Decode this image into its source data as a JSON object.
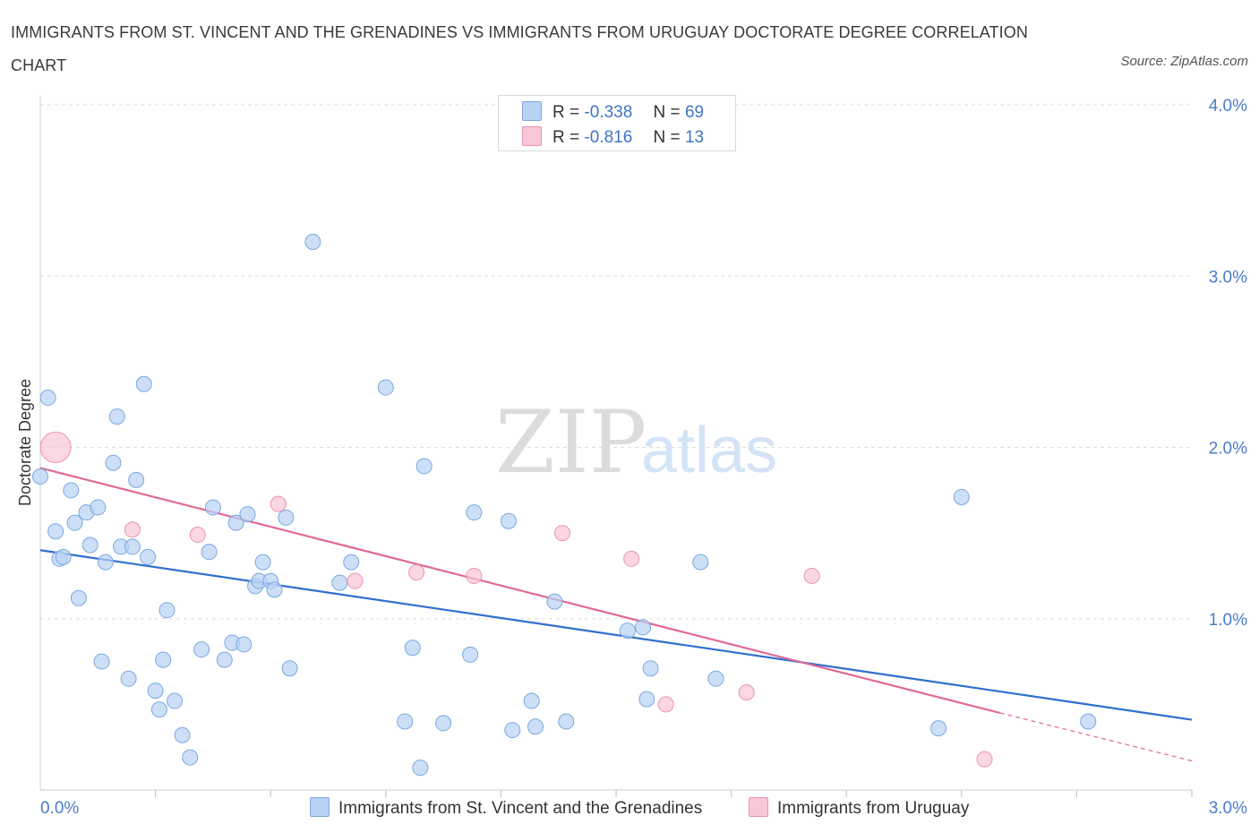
{
  "header": {
    "title": "IMMIGRANTS FROM ST. VINCENT AND THE GRENADINES VS IMMIGRANTS FROM URUGUAY DOCTORATE DEGREE CORRELATION CHART",
    "source": "Source: ZipAtlas.com"
  },
  "watermark": {
    "zip": "ZIP",
    "atlas": "atlas"
  },
  "legend": {
    "rows": [
      {
        "r_label": "R =",
        "r_value": "-0.338",
        "n_label": "N =",
        "n_value": "69"
      },
      {
        "r_label": "R =",
        "r_value": "-0.816",
        "n_label": "N =",
        "n_value": "13"
      }
    ]
  },
  "colors": {
    "blue_fill": "#b8d2f4",
    "blue_stroke": "#7aa8e0",
    "blue_line": "#2f6fce",
    "pink_fill": "#f8c6d4",
    "pink_stroke": "#ec93ae",
    "pink_line": "#e06a95",
    "grid": "#dddddd",
    "tick_text": "#4a7cc9"
  },
  "chart_data": {
    "type": "scatter",
    "title": "IMMIGRANTS FROM ST. VINCENT AND THE GRENADINES VS IMMIGRANTS FROM URUGUAY DOCTORATE DEGREE CORRELATION CHART",
    "ylabel": "Doctorate Degree",
    "xlabel": "",
    "xlim": [
      0,
      3.0
    ],
    "ylim": [
      0,
      4.0
    ],
    "x_tick_labels": [
      "0.0%",
      "3.0%"
    ],
    "y_tick_labels": [
      "1.0%",
      "2.0%",
      "3.0%",
      "4.0%"
    ],
    "y_ticks": [
      1.0,
      2.0,
      3.0,
      4.0
    ],
    "x_minor_ticks": [
      0.3,
      0.6,
      0.9,
      1.2,
      1.5,
      1.8,
      2.1,
      2.4,
      2.7,
      3.0
    ],
    "grid": true,
    "legend_position": "top-center",
    "series": [
      {
        "name": "Immigrants from St. Vincent and the Grenadines",
        "color": "#b8d2f4",
        "points": [
          [
            0.02,
            2.29
          ],
          [
            0.0,
            1.83
          ],
          [
            0.04,
            1.51
          ],
          [
            0.05,
            1.35
          ],
          [
            0.06,
            1.36
          ],
          [
            0.08,
            1.75
          ],
          [
            0.09,
            1.56
          ],
          [
            0.1,
            1.12
          ],
          [
            0.12,
            1.62
          ],
          [
            0.13,
            1.43
          ],
          [
            0.15,
            1.65
          ],
          [
            0.16,
            0.75
          ],
          [
            0.17,
            1.33
          ],
          [
            0.19,
            1.91
          ],
          [
            0.2,
            2.18
          ],
          [
            0.21,
            1.42
          ],
          [
            0.23,
            0.65
          ],
          [
            0.24,
            1.42
          ],
          [
            0.25,
            1.81
          ],
          [
            0.27,
            2.37
          ],
          [
            0.28,
            1.36
          ],
          [
            0.3,
            0.58
          ],
          [
            0.31,
            0.47
          ],
          [
            0.32,
            0.76
          ],
          [
            0.33,
            1.05
          ],
          [
            0.35,
            0.52
          ],
          [
            0.37,
            0.32
          ],
          [
            0.39,
            0.19
          ],
          [
            0.42,
            0.82
          ],
          [
            0.44,
            1.39
          ],
          [
            0.45,
            1.65
          ],
          [
            0.48,
            0.76
          ],
          [
            0.5,
            0.86
          ],
          [
            0.51,
            1.56
          ],
          [
            0.53,
            0.85
          ],
          [
            0.54,
            1.61
          ],
          [
            0.56,
            1.19
          ],
          [
            0.57,
            1.22
          ],
          [
            0.58,
            1.33
          ],
          [
            0.6,
            1.22
          ],
          [
            0.61,
            1.17
          ],
          [
            0.64,
            1.59
          ],
          [
            0.65,
            0.71
          ],
          [
            0.71,
            3.2
          ],
          [
            0.78,
            1.21
          ],
          [
            0.81,
            1.33
          ],
          [
            0.9,
            2.35
          ],
          [
            0.95,
            0.4
          ],
          [
            0.97,
            0.83
          ],
          [
            0.99,
            0.13
          ],
          [
            1.0,
            1.89
          ],
          [
            1.05,
            0.39
          ],
          [
            1.12,
            0.79
          ],
          [
            1.13,
            1.62
          ],
          [
            1.22,
            1.57
          ],
          [
            1.23,
            0.35
          ],
          [
            1.28,
            0.52
          ],
          [
            1.29,
            0.37
          ],
          [
            1.34,
            1.1
          ],
          [
            1.37,
            0.4
          ],
          [
            1.53,
            0.93
          ],
          [
            1.57,
            0.95
          ],
          [
            1.58,
            0.53
          ],
          [
            1.59,
            0.71
          ],
          [
            1.72,
            1.33
          ],
          [
            1.76,
            0.65
          ],
          [
            2.34,
            0.36
          ],
          [
            2.4,
            1.71
          ],
          [
            2.73,
            0.4
          ]
        ]
      },
      {
        "name": "Immigrants from Uruguay",
        "color": "#f8c6d4",
        "points": [
          [
            0.04,
            2.0
          ],
          [
            0.24,
            1.52
          ],
          [
            0.41,
            1.49
          ],
          [
            0.62,
            1.67
          ],
          [
            0.82,
            1.22
          ],
          [
            0.98,
            1.27
          ],
          [
            1.13,
            1.25
          ],
          [
            1.36,
            1.5
          ],
          [
            1.54,
            1.35
          ],
          [
            1.63,
            0.5
          ],
          [
            1.84,
            0.57
          ],
          [
            2.01,
            1.25
          ],
          [
            2.46,
            0.18
          ]
        ]
      }
    ],
    "trend_lines": [
      {
        "series": "Immigrants from St. Vincent and the Grenadines",
        "x": [
          0.0,
          3.0
        ],
        "y": [
          1.4,
          0.41
        ]
      },
      {
        "series": "Immigrants from Uruguay",
        "x": [
          0.0,
          2.5
        ],
        "y": [
          1.88,
          0.45
        ],
        "dashed_extension_to_x": 3.0,
        "dashed_extension_y": 0.17
      }
    ]
  },
  "bottom_legend": {
    "items": [
      {
        "label": "Immigrants from St. Vincent and the Grenadines"
      },
      {
        "label": "Immigrants from Uruguay"
      }
    ]
  }
}
